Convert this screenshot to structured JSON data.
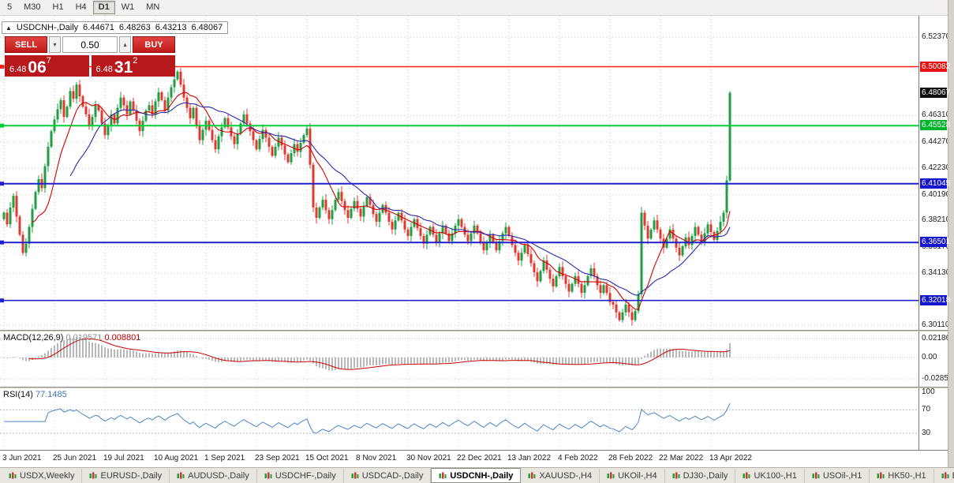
{
  "toolbar": {
    "timeframes": [
      {
        "label": "5",
        "active": false
      },
      {
        "label": "M30",
        "active": false
      },
      {
        "label": "H1",
        "active": false
      },
      {
        "label": "H4",
        "active": false
      },
      {
        "label": "D1",
        "active": true
      },
      {
        "label": "W1",
        "active": false
      },
      {
        "label": "MN",
        "active": false
      }
    ]
  },
  "chart": {
    "info": {
      "arrow": "▲",
      "title": "USDCNH-,Daily",
      "open": "6.44671",
      "high": "6.48263",
      "low": "6.43213",
      "close": "6.48067"
    }
  },
  "trade_panel": {
    "sell_label": "SELL",
    "buy_label": "BUY",
    "volume": "0.50",
    "icons": {
      "volume_decrease": "▾",
      "volume_increase": "▴"
    },
    "bid": {
      "prefix": "6.48",
      "big": "06",
      "sup": "7"
    },
    "ask": {
      "prefix": "6.48",
      "big": "31",
      "sup": "2"
    }
  },
  "price_axis": {
    "grid": [
      {
        "text": "6.52370",
        "price": 6.5237
      },
      {
        "text": "6.46310",
        "price": 6.4631
      },
      {
        "text": "6.44270",
        "price": 6.4427
      },
      {
        "text": "6.42230",
        "price": 6.4223
      },
      {
        "text": "6.40190",
        "price": 6.4019
      },
      {
        "text": "6.38210",
        "price": 6.3821
      },
      {
        "text": "6.36170",
        "price": 6.3617
      },
      {
        "text": "6.34130",
        "price": 6.3413
      },
      {
        "text": "6.30110",
        "price": 6.3011
      }
    ],
    "badges": [
      {
        "text": "6.50082",
        "price": 6.50082,
        "color": "#e81212"
      },
      {
        "text": "6.48067",
        "price": 6.48067,
        "color": "#111111"
      },
      {
        "text": "6.45528",
        "price": 6.45528,
        "color": "#00b32c"
      },
      {
        "text": "6.41045",
        "price": 6.41045,
        "color": "#1616cc"
      },
      {
        "text": "6.36501",
        "price": 6.36501,
        "color": "#1616cc"
      },
      {
        "text": "6.32018",
        "price": 6.32018,
        "color": "#1616cc"
      }
    ]
  },
  "macd": {
    "label": "MACD(12,26,9)",
    "value1": "0.019571",
    "value2": "0.008801",
    "axis": [
      "0.021861",
      "0.00",
      "-0.028533"
    ]
  },
  "rsi": {
    "label": "RSI(14)",
    "value": "77.1485",
    "axis": [
      "100",
      "70",
      "30"
    ]
  },
  "x_axis": {
    "labels": [
      {
        "text": "3 Jun 2021",
        "bar": 0
      },
      {
        "text": "25 Jun 2021",
        "bar": 16
      },
      {
        "text": "19 Jul 2021",
        "bar": 32
      },
      {
        "text": "10 Aug 2021",
        "bar": 48
      },
      {
        "text": "1 Sep 2021",
        "bar": 64
      },
      {
        "text": "23 Sep 2021",
        "bar": 80
      },
      {
        "text": "15 Oct 2021",
        "bar": 96
      },
      {
        "text": "8 Nov 2021",
        "bar": 112
      },
      {
        "text": "30 Nov 2021",
        "bar": 128
      },
      {
        "text": "22 Dec 2021",
        "bar": 144
      },
      {
        "text": "13 Jan 2022",
        "bar": 160
      },
      {
        "text": "4 Feb 2022",
        "bar": 176
      },
      {
        "text": "28 Feb 2022",
        "bar": 192
      },
      {
        "text": "22 Mar 2022",
        "bar": 208
      },
      {
        "text": "13 Apr 2022",
        "bar": 224
      }
    ]
  },
  "tabs": [
    {
      "label": "USDX,Weekly",
      "active": false
    },
    {
      "label": "EURUSD-,Daily",
      "active": false
    },
    {
      "label": "AUDUSD-,Daily",
      "active": false
    },
    {
      "label": "USDCHF-,Daily",
      "active": false
    },
    {
      "label": "USDCAD-,Daily",
      "active": false
    },
    {
      "label": "USDCNH-,Daily",
      "active": true
    },
    {
      "label": "XAUUSD-,H4",
      "active": false
    },
    {
      "label": "UKOil-,H4",
      "active": false
    },
    {
      "label": "DJ30-,Daily",
      "active": false
    },
    {
      "label": "UK100-,H1",
      "active": false
    },
    {
      "label": "USOil-,H1",
      "active": false
    },
    {
      "label": "HK50-,H1",
      "active": false
    },
    {
      "label": "EU",
      "active": false
    }
  ],
  "colors": {
    "up_candle": "#1f9e42",
    "down_candle": "#e03a30",
    "ma_fast": "#d00000",
    "ma_slow": "#2a2ab0",
    "macd_hist": "#b8b8b8",
    "macd_signal": "#cc0000",
    "rsi_line": "#4a86c8",
    "grid": "#c9c9c9"
  },
  "chart_data": {
    "type": "candlestick",
    "symbol": "USDCNH",
    "timeframe": "Daily",
    "current_ohlc": {
      "open": 6.44671,
      "high": 6.48263,
      "low": 6.43213,
      "close": 6.48067
    },
    "price_range_shown": [
      6.3011,
      6.5237
    ],
    "first_open": 6.383,
    "closes": [
      6.388,
      6.379,
      6.392,
      6.401,
      6.385,
      6.371,
      6.357,
      6.364,
      6.377,
      6.391,
      6.404,
      6.414,
      6.407,
      6.424,
      6.439,
      6.451,
      6.46,
      6.468,
      6.475,
      6.462,
      6.47,
      6.482,
      6.476,
      6.487,
      6.478,
      6.47,
      6.464,
      6.455,
      6.462,
      6.471,
      6.467,
      6.457,
      6.448,
      6.455,
      6.464,
      6.457,
      6.469,
      6.477,
      6.471,
      6.464,
      6.474,
      6.467,
      6.459,
      6.451,
      6.459,
      6.467,
      6.471,
      6.464,
      6.474,
      6.481,
      6.475,
      6.467,
      6.477,
      6.485,
      6.491,
      6.497,
      6.487,
      6.477,
      6.469,
      6.461,
      6.469,
      6.455,
      6.444,
      6.452,
      6.459,
      6.452,
      6.444,
      6.437,
      6.447,
      6.454,
      6.461,
      6.454,
      6.447,
      6.441,
      6.449,
      6.457,
      6.464,
      6.457,
      6.451,
      6.444,
      6.437,
      6.445,
      6.452,
      6.446,
      6.439,
      6.432,
      6.439,
      6.446,
      6.44,
      6.433,
      6.427,
      6.434,
      6.441,
      6.435,
      6.442,
      6.448,
      6.453,
      6.425,
      6.392,
      6.384,
      6.392,
      6.398,
      6.39,
      6.383,
      6.39,
      6.398,
      6.404,
      6.397,
      6.39,
      6.384,
      6.391,
      6.397,
      6.391,
      6.385,
      6.393,
      6.4,
      6.394,
      6.387,
      6.381,
      6.388,
      6.394,
      6.388,
      6.381,
      6.375,
      6.382,
      6.388,
      6.382,
      6.375,
      6.37,
      6.377,
      6.383,
      6.376,
      6.37,
      6.364,
      6.371,
      6.377,
      6.371,
      6.365,
      6.372,
      6.378,
      6.372,
      6.366,
      6.372,
      6.378,
      6.383,
      6.377,
      6.371,
      6.366,
      6.372,
      6.378,
      6.372,
      6.365,
      6.359,
      6.365,
      6.371,
      6.365,
      6.359,
      6.366,
      6.372,
      6.377,
      6.37,
      6.363,
      6.357,
      6.351,
      6.357,
      6.363,
      6.356,
      6.349,
      6.342,
      6.335,
      6.343,
      6.351,
      6.344,
      6.337,
      6.331,
      6.339,
      6.346,
      6.339,
      6.333,
      6.327,
      6.333,
      6.339,
      6.333,
      6.326,
      6.332,
      6.339,
      6.345,
      6.339,
      6.332,
      6.326,
      6.332,
      6.326,
      6.319,
      6.317,
      6.311,
      6.305,
      6.311,
      6.317,
      6.311,
      6.305,
      6.312,
      6.325,
      6.388,
      6.378,
      6.368,
      6.375,
      6.382,
      6.375,
      6.368,
      6.361,
      6.368,
      6.375,
      6.368,
      6.361,
      6.355,
      6.362,
      6.369,
      6.363,
      6.37,
      6.377,
      6.371,
      6.365,
      6.372,
      6.379,
      6.373,
      6.367,
      6.374,
      6.381,
      6.388,
      6.413,
      6.4807
    ],
    "hlines": [
      {
        "price": 6.50082,
        "color": "#ff1e1e",
        "width": 1.4
      },
      {
        "price": 6.45528,
        "color": "#00cf35",
        "width": 2
      },
      {
        "price": 6.41045,
        "color": "#2020cf",
        "width": 2
      },
      {
        "price": 6.36501,
        "color": "#2020cf",
        "width": 2
      },
      {
        "price": 6.32018,
        "color": "#2020cf",
        "width": 1.6
      }
    ],
    "indicators": {
      "macd": {
        "fast": 12,
        "slow": 26,
        "signal": 9,
        "current": [
          0.019571,
          0.008801
        ]
      },
      "rsi": {
        "period": 14,
        "current": 77.1485,
        "levels": [
          70,
          30
        ]
      }
    }
  }
}
